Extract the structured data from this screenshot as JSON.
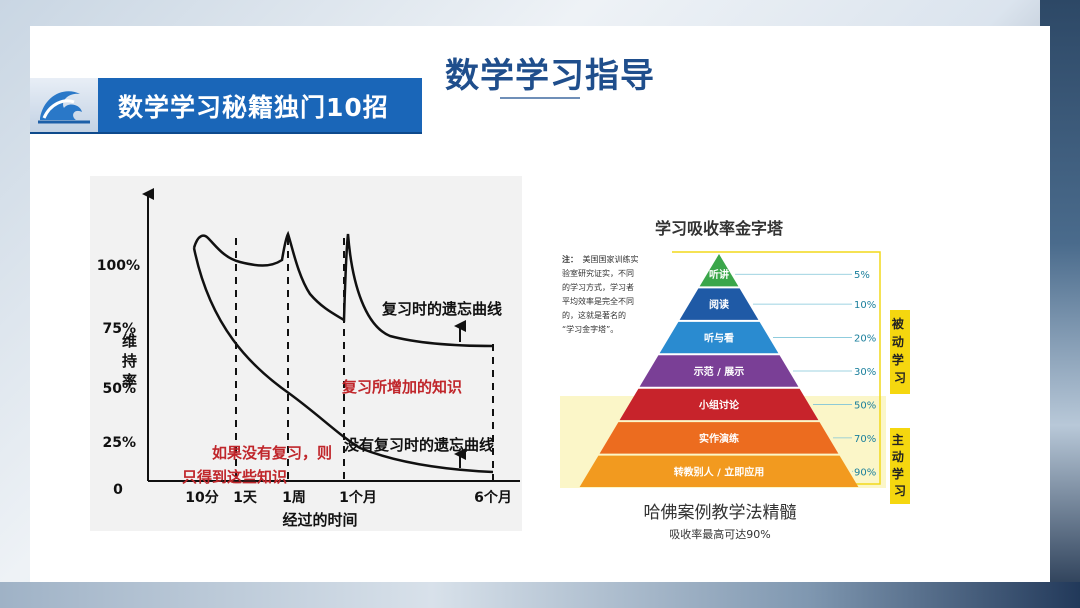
{
  "slide_title": "数学学习指导",
  "banner": {
    "text": "数学学习秘籍独门10招",
    "icon": "wave-icon"
  },
  "forgetting_curve": {
    "y_axis_label": "维持率",
    "y_ticks": [
      "100%",
      "75%",
      "50%",
      "25%",
      "0"
    ],
    "x_ticks": [
      "10分",
      "1天",
      "1周",
      "1个月",
      "6个月"
    ],
    "x_axis_label": "经过的时间",
    "annotations": {
      "with_review": "复习时的遗忘曲线",
      "added_knowledge": "复习所增加的知识",
      "without_review": "没有复习时的遗忘曲线",
      "no_review_result_line1": "如果没有复习，则",
      "no_review_result_line2": "只得到这些知识"
    },
    "colors": {
      "line": "#111111",
      "red_text": "#c0262b"
    }
  },
  "pyramid": {
    "title": "学习吸收率金字塔",
    "note_label": "注：",
    "note_lines": [
      "美国国家训练实",
      "验室研究证实，不同",
      "的学习方式，学习者",
      "平均效率是完全不同",
      "的，这就是著名的",
      "“学习金字塔”。"
    ],
    "levels": [
      {
        "label": "听讲",
        "rate": "5%",
        "color": "#3aa64a"
      },
      {
        "label": "阅读",
        "rate": "10%",
        "color": "#1f5aa6"
      },
      {
        "label": "听与看",
        "rate": "20%",
        "color": "#2a8bd0"
      },
      {
        "label": "示范 / 展示",
        "rate": "30%",
        "color": "#7a3f96"
      },
      {
        "label": "小组讨论",
        "rate": "50%",
        "color": "#c7232b"
      },
      {
        "label": "实作演练",
        "rate": "70%",
        "color": "#ec6c1f"
      },
      {
        "label": "转教别人 / 立即应用",
        "rate": "90%",
        "color": "#f29a1f"
      }
    ],
    "passive_label": [
      "被",
      "动",
      "学",
      "习"
    ],
    "active_label": [
      "主",
      "动",
      "学",
      "习"
    ],
    "subtitle": "哈佛案例教学法精髓",
    "caption": "吸收率最高可达90%",
    "colors": {
      "bracket": "#f2d81a",
      "rate_text": "#1a7f9c",
      "label_bg": "#f5d70f"
    }
  }
}
